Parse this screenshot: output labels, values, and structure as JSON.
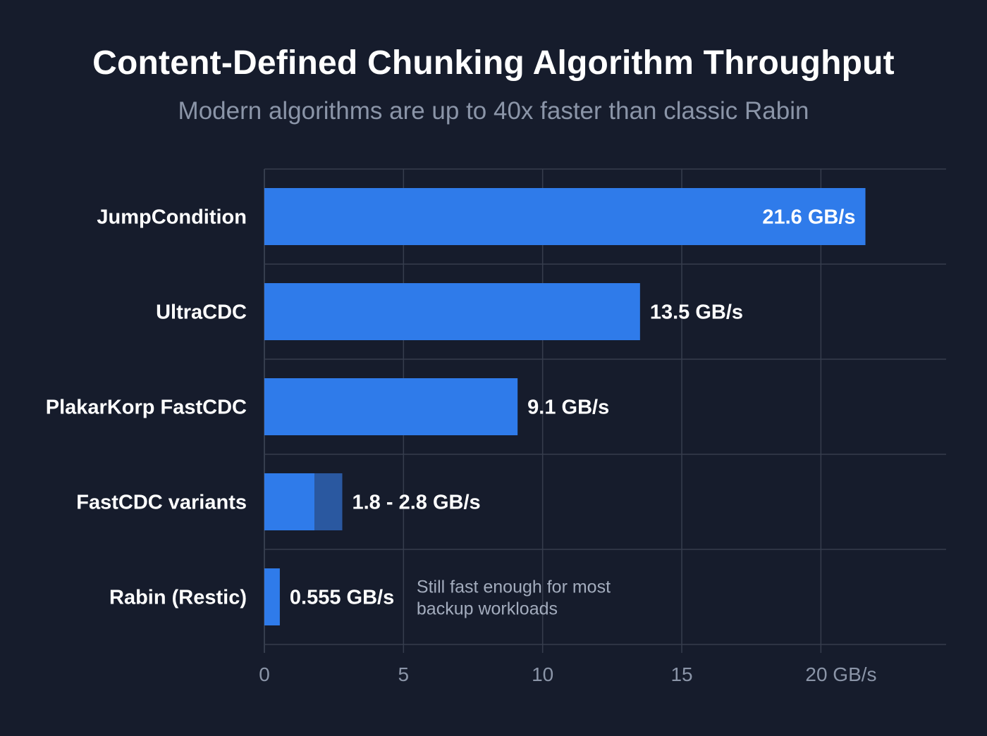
{
  "colors": {
    "background": "#161c2c",
    "bar": "#2f7bea",
    "bar_range": "#2a58a0",
    "grid": "#363d4d",
    "axis_text": "#8b95a8"
  },
  "chart_data": {
    "type": "bar",
    "orientation": "horizontal",
    "title": "Content-Defined Chunking Algorithm Throughput",
    "subtitle": "Modern algorithms are up to 40x faster than classic Rabin",
    "categories": [
      "JumpCondition",
      "UltraCDC",
      "PlakarKorp FastCDC",
      "FastCDC variants",
      "Rabin (Restic)"
    ],
    "values": [
      21.6,
      13.5,
      9.1,
      1.8,
      0.555
    ],
    "range_max": [
      null,
      null,
      null,
      2.8,
      null
    ],
    "value_labels": [
      "21.6 GB/s",
      "13.5 GB/s",
      "9.1 GB/s",
      "1.8 - 2.8 GB/s",
      "0.555 GB/s"
    ],
    "annotation": {
      "category": "Rabin (Restic)",
      "lines": [
        "Still fast enough for most",
        "backup workloads"
      ]
    },
    "x_ticks": [
      0,
      5,
      10,
      15,
      20
    ],
    "x_tick_labels": [
      "0",
      "5",
      "10",
      "15",
      "20 GB/s"
    ],
    "xlim": [
      0,
      24.5
    ],
    "xlabel": "",
    "ylabel": "",
    "grid": true
  }
}
